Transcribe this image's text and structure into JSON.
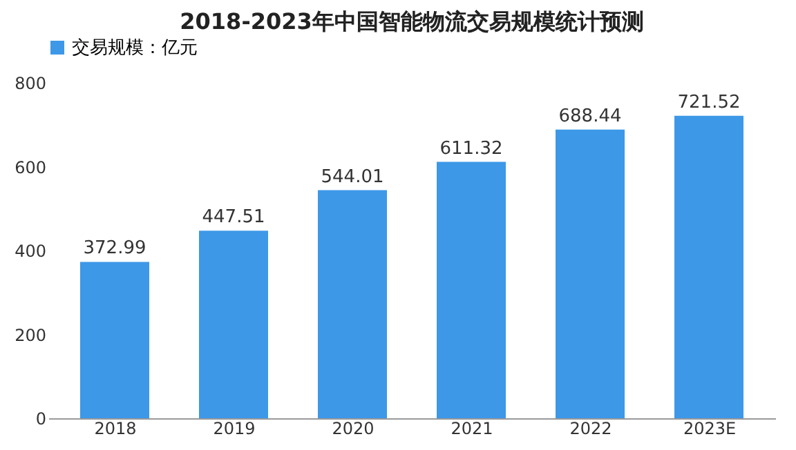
{
  "chart_data": {
    "type": "bar",
    "title": "2018-2023年中国智能物流交易规模统计预测",
    "categories": [
      "2018",
      "2019",
      "2020",
      "2021",
      "2022",
      "2023E"
    ],
    "series": [
      {
        "name": "交易规模：亿元",
        "color": "#3d98e8",
        "values": [
          372.99,
          447.51,
          544.01,
          611.32,
          688.44,
          721.52
        ]
      }
    ],
    "ylim": [
      0,
      800
    ],
    "yticks": [
      0,
      200,
      400,
      600,
      800
    ],
    "grid": false,
    "legend": "top",
    "data_labels": true
  }
}
